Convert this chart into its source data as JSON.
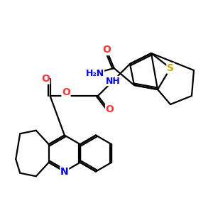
{
  "bg_color": "#ffffff",
  "atom_colors": {
    "O": "#ff3333",
    "N": "#0000ff",
    "S": "#ccaa00",
    "C": "#000000"
  },
  "bond_color": "#000000",
  "bond_width": 1.6,
  "dbo": 0.08,
  "figsize": [
    3.0,
    3.0
  ],
  "dpi": 100
}
